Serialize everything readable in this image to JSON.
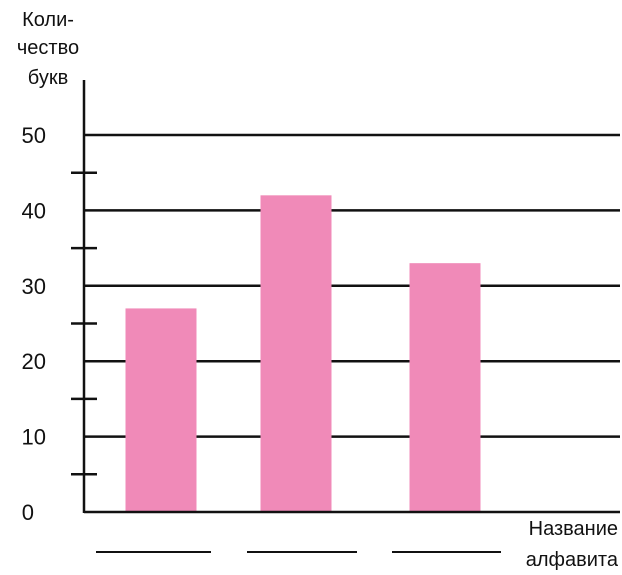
{
  "chart_data": {
    "type": "bar",
    "ylabel_lines": [
      "Коли-",
      "чество",
      "букв"
    ],
    "xlabel_lines": [
      "Название",
      "алфавита"
    ],
    "categories": [
      "",
      "",
      ""
    ],
    "values": [
      27,
      42,
      33
    ],
    "ylim": [
      0,
      50
    ],
    "yticks": [
      0,
      10,
      20,
      30,
      40,
      50
    ],
    "yticks_minor": [
      5,
      15,
      25,
      35,
      45
    ],
    "grid": true,
    "bar_color": "#f08ab8",
    "axis_color": "#111111"
  }
}
